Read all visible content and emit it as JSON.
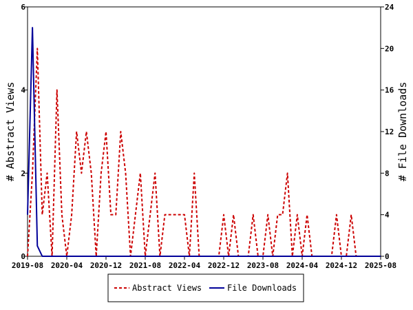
{
  "chart_data": {
    "type": "line",
    "title": "",
    "x_ticks": [
      "2019-08",
      "2020-04",
      "2020-12",
      "2021-08",
      "2022-04",
      "2022-12",
      "2023-08",
      "2024-04",
      "2024-12",
      "2025-08"
    ],
    "x_range": [
      "2019-08",
      "2025-08"
    ],
    "ylabel_left": "# Abstract Views",
    "ylabel_right": "# File Downloads",
    "y_left_ticks": [
      0,
      2,
      4,
      6
    ],
    "y_left_range": [
      0,
      6
    ],
    "y_right_ticks": [
      0,
      4,
      8,
      12,
      16,
      20,
      24
    ],
    "y_right_range": [
      0,
      24
    ],
    "grid": false,
    "legend_position": "bottom",
    "series": [
      {
        "name": "Abstract Views",
        "axis": "left",
        "color": "#cc0000",
        "style": "dashed",
        "points": [
          [
            "2019-08",
            0
          ],
          [
            "2019-09",
            2
          ],
          [
            "2019-10",
            5
          ],
          [
            "2019-11",
            1
          ],
          [
            "2019-12",
            2
          ],
          [
            "2020-01",
            0
          ],
          [
            "2020-02",
            4
          ],
          [
            "2020-03",
            1
          ],
          [
            "2020-04",
            0
          ],
          [
            "2020-05",
            1
          ],
          [
            "2020-06",
            3
          ],
          [
            "2020-07",
            2
          ],
          [
            "2020-08",
            3
          ],
          [
            "2020-09",
            2
          ],
          [
            "2020-10",
            0
          ],
          [
            "2020-11",
            2
          ],
          [
            "2020-12",
            3
          ],
          [
            "2021-01",
            1
          ],
          [
            "2021-02",
            1
          ],
          [
            "2021-03",
            3
          ],
          [
            "2021-04",
            2
          ],
          [
            "2021-05",
            0
          ],
          [
            "2021-06",
            1
          ],
          [
            "2021-07",
            2
          ],
          [
            "2021-08",
            0
          ],
          [
            "2021-09",
            1
          ],
          [
            "2021-10",
            2
          ],
          [
            "2021-11",
            0
          ],
          [
            "2021-12",
            1
          ],
          [
            "2022-01",
            1
          ],
          [
            "2022-02",
            1
          ],
          [
            "2022-03",
            1
          ],
          [
            "2022-04",
            1
          ],
          [
            "2022-05",
            0
          ],
          [
            "2022-06",
            2
          ],
          [
            "2022-07",
            0
          ],
          [
            "2022-08",
            0
          ],
          [
            "2022-09",
            0
          ],
          [
            "2022-10",
            0
          ],
          [
            "2022-11",
            0
          ],
          [
            "2022-12",
            1
          ],
          [
            "2023-01",
            0
          ],
          [
            "2023-02",
            1
          ],
          [
            "2023-03",
            0
          ],
          [
            "2023-04",
            0
          ],
          [
            "2023-05",
            0
          ],
          [
            "2023-06",
            1
          ],
          [
            "2023-07",
            0
          ],
          [
            "2023-08",
            0
          ],
          [
            "2023-09",
            1
          ],
          [
            "2023-10",
            0
          ],
          [
            "2023-11",
            1
          ],
          [
            "2023-12",
            1
          ],
          [
            "2024-01",
            2
          ],
          [
            "2024-02",
            0
          ],
          [
            "2024-03",
            1
          ],
          [
            "2024-04",
            0
          ],
          [
            "2024-05",
            1
          ],
          [
            "2024-06",
            0
          ],
          [
            "2024-07",
            0
          ],
          [
            "2024-08",
            0
          ],
          [
            "2024-09",
            0
          ],
          [
            "2024-10",
            0
          ],
          [
            "2024-11",
            1
          ],
          [
            "2024-12",
            0
          ],
          [
            "2025-01",
            0
          ],
          [
            "2025-02",
            1
          ],
          [
            "2025-03",
            0
          ],
          [
            "2025-04",
            0
          ],
          [
            "2025-05",
            0
          ],
          [
            "2025-06",
            0
          ],
          [
            "2025-07",
            0
          ],
          [
            "2025-08",
            0
          ]
        ]
      },
      {
        "name": "File Downloads",
        "axis": "right",
        "color": "#000099",
        "style": "solid",
        "points": [
          [
            "2019-08",
            4
          ],
          [
            "2019-09",
            22
          ],
          [
            "2019-10",
            1
          ],
          [
            "2019-11",
            0
          ],
          [
            "2019-12",
            0
          ],
          [
            "2020-04",
            0
          ],
          [
            "2020-12",
            0
          ],
          [
            "2021-08",
            0
          ],
          [
            "2022-04",
            0
          ],
          [
            "2022-12",
            0
          ],
          [
            "2023-08",
            0
          ],
          [
            "2024-04",
            0
          ],
          [
            "2024-12",
            0
          ],
          [
            "2025-08",
            0
          ]
        ]
      }
    ]
  }
}
